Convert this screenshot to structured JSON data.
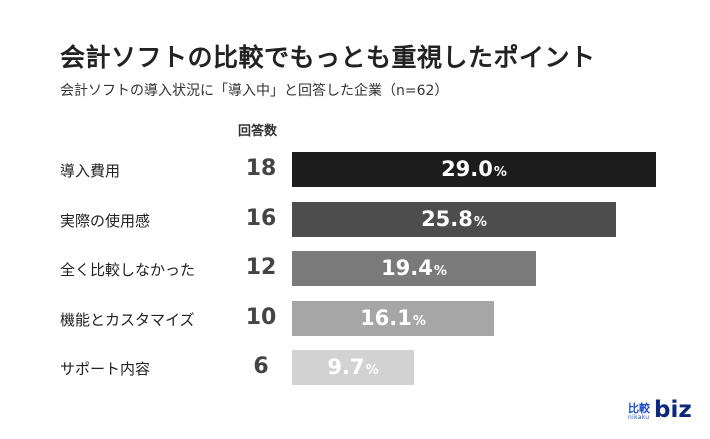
{
  "chart_data": {
    "type": "bar",
    "orientation": "horizontal",
    "title": "会計ソフトの比較でもっとも重視したポイント",
    "subtitle": "会計ソフトの導入状況に「導入中」と回答した企業（n=62）",
    "count_header": "回答数",
    "categories": [
      "導入費用",
      "実際の使用感",
      "全く比較しなかった",
      "機能とカスタマイズ",
      "サポート内容"
    ],
    "counts": [
      18,
      16,
      12,
      10,
      6
    ],
    "values": [
      29.0,
      25.8,
      19.4,
      16.1,
      9.7
    ],
    "value_labels": [
      "29.0",
      "25.8",
      "19.4",
      "16.1",
      "9.7"
    ],
    "unit": "%",
    "colors": [
      "#1c1c1c",
      "#4d4d4d",
      "#7a7a7a",
      "#a6a6a6",
      "#d2d2d2"
    ],
    "xlim": [
      0,
      29.0
    ],
    "grid": false,
    "legend": "none"
  },
  "logo": {
    "kanji": "比較",
    "romaji": "nikaku",
    "text": "biz"
  }
}
